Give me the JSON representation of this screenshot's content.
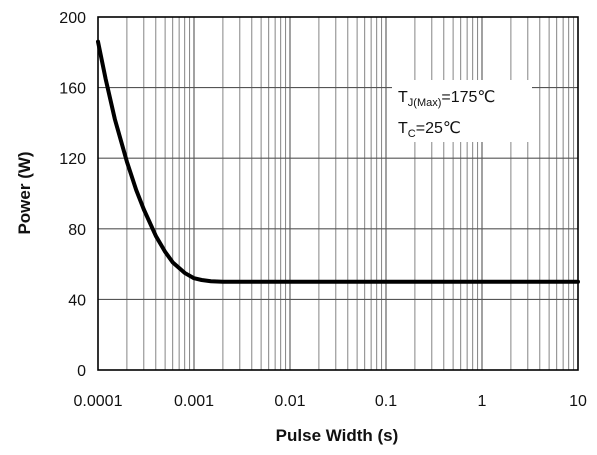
{
  "chart_data": {
    "type": "line",
    "title": "",
    "xlabel": "Pulse Width (s)",
    "ylabel": "Power (W)",
    "x_scale": "log",
    "xlim": [
      0.0001,
      10
    ],
    "ylim": [
      0,
      200
    ],
    "x_ticks": [
      0.0001,
      0.001,
      0.01,
      0.1,
      1,
      10
    ],
    "x_tick_labels": [
      "0.0001",
      "0.001",
      "0.01",
      "0.1",
      "1",
      "10"
    ],
    "y_ticks": [
      0,
      40,
      80,
      120,
      160,
      200
    ],
    "y_tick_labels": [
      "0",
      "40",
      "80",
      "120",
      "160",
      "200"
    ],
    "grid": true,
    "series": [
      {
        "name": "",
        "color": "#000000",
        "x": [
          0.0001,
          0.00012,
          0.00015,
          0.0002,
          0.00025,
          0.0003,
          0.0004,
          0.0005,
          0.0006,
          0.0008,
          0.001,
          0.0012,
          0.0015,
          0.002,
          0.003,
          0.005,
          0.01,
          0.1,
          1,
          10
        ],
        "y": [
          186,
          165,
          142,
          118,
          102,
          91,
          76,
          67,
          61,
          55,
          52,
          51,
          50.3,
          50,
          50,
          50,
          50,
          50,
          50,
          50
        ]
      }
    ],
    "annotations": [
      {
        "main": "T",
        "sub": "J(Max)",
        "rest": "=175℃"
      },
      {
        "main": "T",
        "sub": "C",
        "rest": "=25℃"
      }
    ]
  }
}
